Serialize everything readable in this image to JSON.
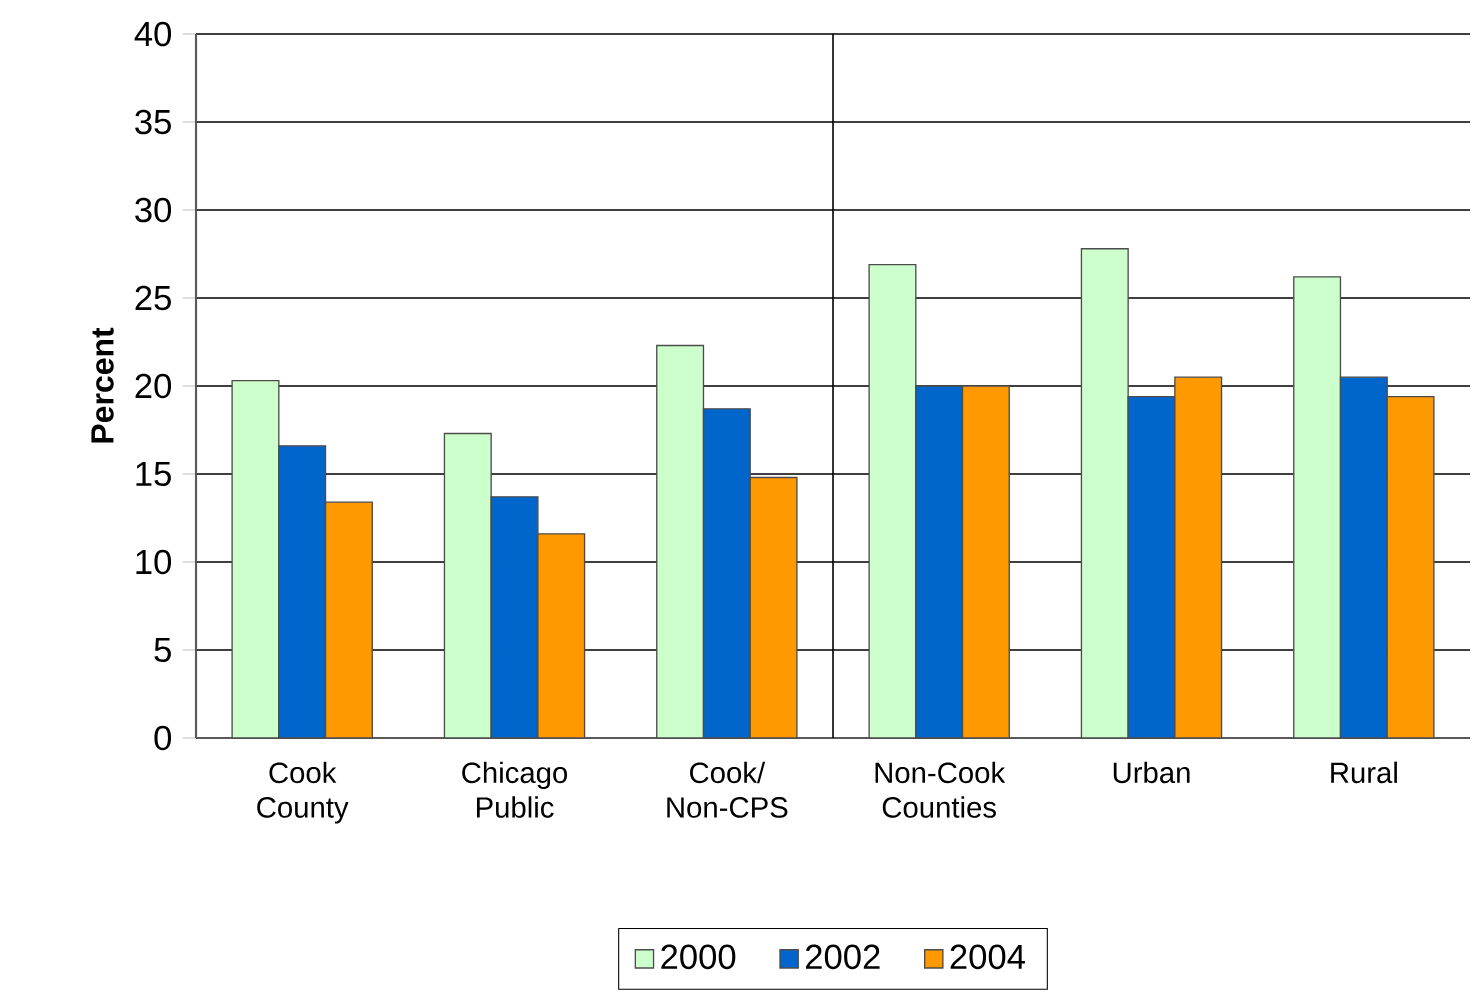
{
  "chart_data": {
    "type": "bar",
    "ylabel": "**Percent**",
    "categories": [
      "Cook County",
      "Chicago Public",
      "Cook/ Non-CPS",
      "Non-Cook Counties",
      "Urban",
      "Rural"
    ],
    "series": [
      {
        "name": "2000",
        "color": "#ccffcc",
        "values": [
          20.3,
          17.3,
          22.3,
          26.9,
          27.8,
          26.2
        ]
      },
      {
        "name": "2002",
        "color": "#0066cc",
        "values": [
          16.6,
          13.7,
          18.7,
          20.0,
          19.4,
          20.5
        ]
      },
      {
        "name": "2004",
        "color": "#ff9900",
        "values": [
          13.4,
          11.6,
          14.8,
          20.0,
          20.5,
          19.4
        ]
      }
    ],
    "ylim": [
      0,
      40
    ],
    "yticks": [
      0,
      5,
      10,
      15,
      20,
      25,
      30,
      35,
      40
    ],
    "grid": "y",
    "legend": "bottom"
  }
}
